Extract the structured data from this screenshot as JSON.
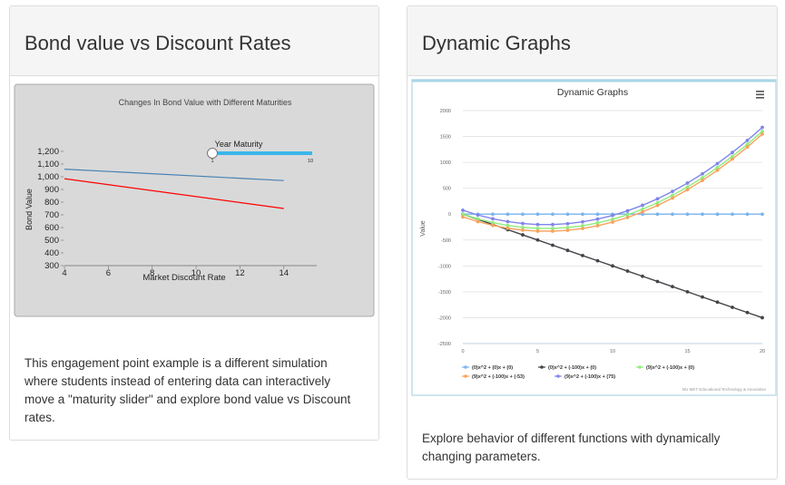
{
  "left_card": {
    "title": "Bond value vs Discount Rates",
    "description": "This engagement point example is a different simulation where students instead of entering data can interactively move a \"maturity slider\" and explore bond value vs Discount rates."
  },
  "right_card": {
    "title": "Dynamic Graphs",
    "description": "Explore behavior of different functions with dynamically changing parameters."
  },
  "chart_data": [
    {
      "type": "line",
      "title": "Changes In Bond Value with Different Maturities",
      "xlabel": "Market Discount Rate",
      "ylabel": "Bond Value",
      "xlim": [
        4,
        15.5
      ],
      "ylim": [
        300,
        1200
      ],
      "x_ticks": [
        "4",
        "6",
        "8",
        "10",
        "12",
        "14"
      ],
      "y_ticks": [
        "300",
        "400",
        "500",
        "600",
        "700",
        "800",
        "900",
        "1,000",
        "1,100",
        "1,200"
      ],
      "series": [
        {
          "color": "#4682b4",
          "x": [
            4,
            14
          ],
          "values": [
            1060,
            970
          ]
        },
        {
          "color": "#ff0000",
          "x": [
            4,
            14
          ],
          "values": [
            985,
            750
          ]
        }
      ],
      "slider": {
        "label": "Year Maturity",
        "min_label": "1",
        "max_label": "10",
        "value_fraction": 0
      }
    },
    {
      "type": "line",
      "title": "Dynamic Graphs",
      "ylabel": "Value",
      "xlim": [
        0,
        20
      ],
      "ylim": [
        -2500,
        2000
      ],
      "x_ticks": [
        "0",
        "5",
        "10",
        "15",
        "20"
      ],
      "y_ticks": [
        "2000",
        "1500",
        "1000",
        "500",
        "0",
        "-500",
        "-1000",
        "-1500",
        "-2000",
        "-2500"
      ],
      "x": [
        0,
        1,
        2,
        3,
        4,
        5,
        6,
        7,
        8,
        9,
        10,
        11,
        12,
        13,
        14,
        15,
        16,
        17,
        18,
        19,
        20
      ],
      "series": [
        {
          "name": "(0)x^2 + (0)x + (0)",
          "color": "#7cb5ec",
          "values": [
            0,
            0,
            0,
            0,
            0,
            0,
            0,
            0,
            0,
            0,
            0,
            0,
            0,
            0,
            0,
            0,
            0,
            0,
            0,
            0,
            0
          ]
        },
        {
          "name": "(0)x^2 + (-100)x + (0)",
          "color": "#434348",
          "values": [
            0,
            -100,
            -200,
            -300,
            -400,
            -500,
            -600,
            -700,
            -800,
            -900,
            -1000,
            -1100,
            -1200,
            -1300,
            -1400,
            -1500,
            -1600,
            -1700,
            -1800,
            -1900,
            -2000
          ]
        },
        {
          "name": "(9)x^2 + (-100)x + (0)",
          "color": "#90ed7d",
          "values": [
            0,
            -91,
            -164,
            -219,
            -256,
            -275,
            -276,
            -259,
            -224,
            -171,
            -100,
            -11,
            96,
            221,
            364,
            525,
            704,
            901,
            1116,
            1349,
            1600
          ]
        },
        {
          "name": "(9)x^2 + (-100)x + (-53)",
          "color": "#f7a35c",
          "values": [
            -53,
            -144,
            -217,
            -272,
            -309,
            -328,
            -329,
            -312,
            -277,
            -224,
            -153,
            -64,
            43,
            168,
            311,
            472,
            651,
            848,
            1063,
            1296,
            1547
          ]
        },
        {
          "name": "(9)x^2 + (-100)x + (75)",
          "color": "#8085e9",
          "values": [
            75,
            -16,
            -89,
            -144,
            -181,
            -200,
            -201,
            -184,
            -149,
            -96,
            -25,
            64,
            171,
            296,
            439,
            600,
            779,
            976,
            1191,
            1424,
            1675
          ]
        }
      ],
      "credits": "BU MET Educational Technology & Innovation",
      "menu_icon": "hamburger-icon"
    }
  ]
}
